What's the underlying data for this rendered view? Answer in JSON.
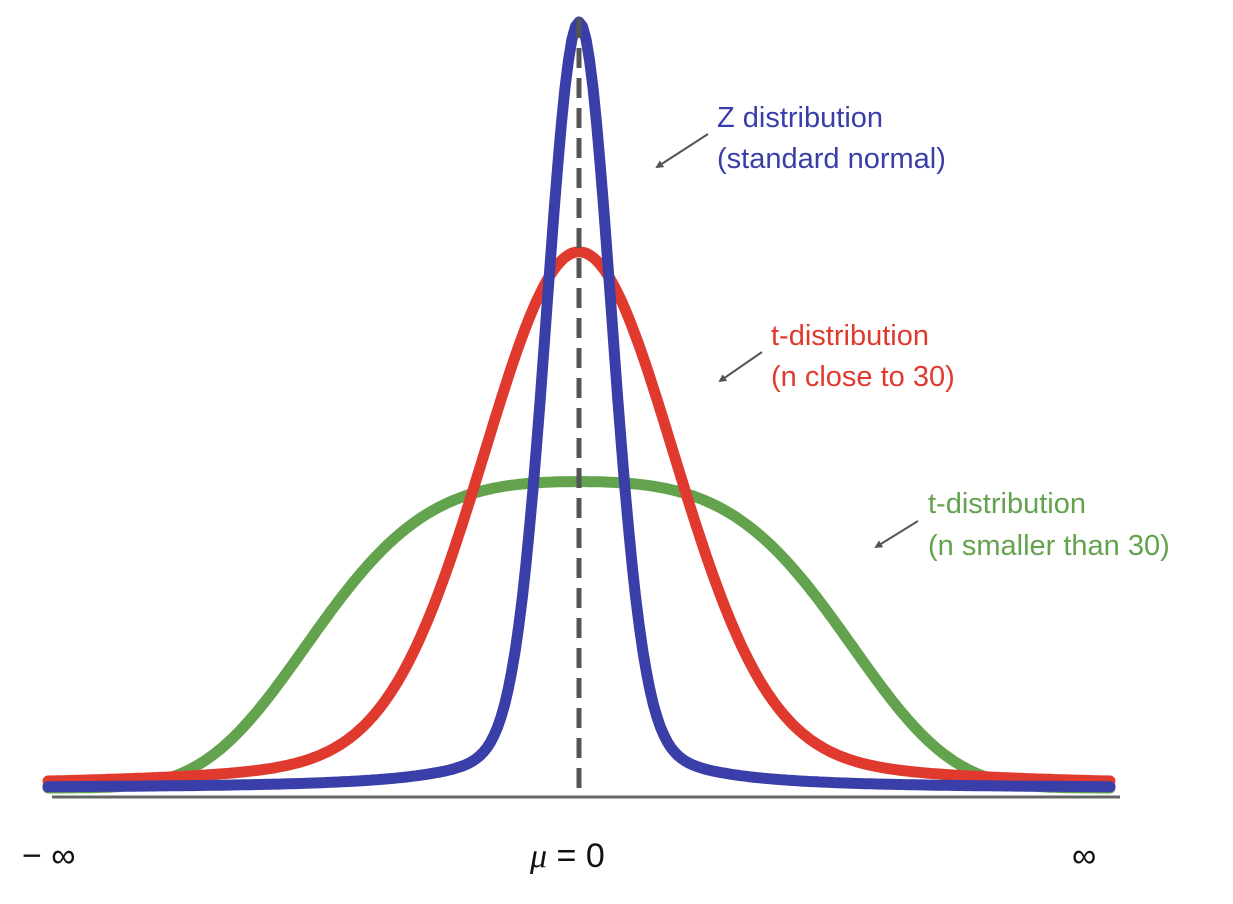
{
  "chart_data": {
    "type": "line",
    "title": "",
    "xlabel": "",
    "ylabel": "",
    "x_ticks": {
      "left": "− ∞",
      "center_symbol": "μ",
      "center_rest": " = 0",
      "right": "∞"
    },
    "x_range": [
      -4,
      4
    ],
    "y_range": [
      0,
      0.4
    ],
    "mean": 0,
    "series": [
      {
        "name": "Z distribution (standard normal)",
        "label_line1": "Z distribution",
        "label_line2": "(standard normal)",
        "color": "#3A3EA8",
        "kind": "peak-high",
        "peak": 0.4
      },
      {
        "name": "t-distribution (n close to 30)",
        "label_line1": "t-distribution",
        "label_line2": "(n close to 30)",
        "color": "#E03A2E",
        "kind": "peak-medium",
        "peak": 0.28
      },
      {
        "name": "t-distribution (n smaller than 30)",
        "label_line1": "t-distribution",
        "label_line2": "(n smaller than 30)",
        "color": "#63A34E",
        "kind": "peak-flat",
        "peak": 0.16
      }
    ],
    "mean_line": {
      "style": "dashed",
      "color": "#555555"
    },
    "axis_color": "#666666"
  }
}
